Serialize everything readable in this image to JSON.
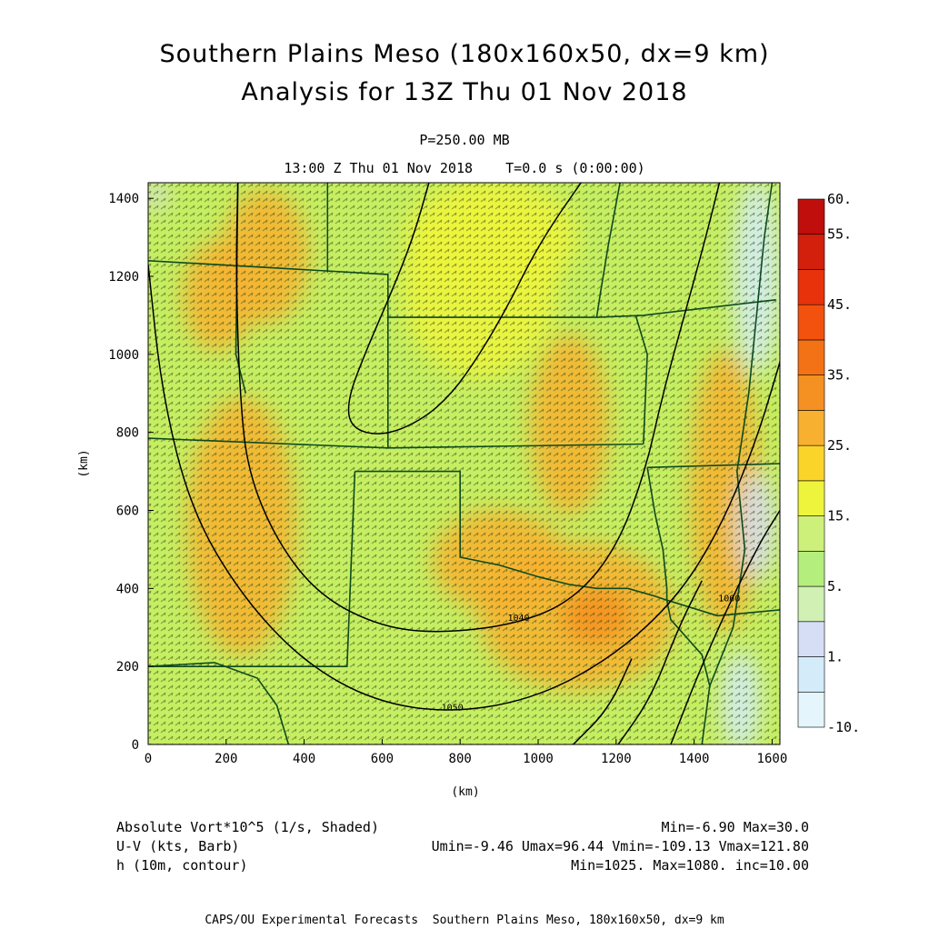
{
  "title": "Southern Plains Meso (180x160x50, dx=9 km)",
  "subtitle": "Analysis for 13Z Thu 01 Nov 2018",
  "level": "P=250.00 MB",
  "time_line": "13:00 Z Thu 01 Nov 2018    T=0.0 s (0:00:00)",
  "fields": [
    {
      "name": "Absolute Vort*10^5 (1/s, Shaded)",
      "stats": "Min=-6.90 Max=30.0"
    },
    {
      "name": "U-V (kts, Barb)",
      "stats": "Umin=-9.46 Umax=96.44 Vmin=-109.13 Vmax=121.80"
    },
    {
      "name": "h (10m, contour)",
      "stats": "Min=1025. Max=1080. inc=10.00"
    }
  ],
  "footer": "CAPS/OU Experimental Forecasts  Southern Plains Meso, 180x160x50, dx=9 km",
  "colors": {
    "field_base": "#c6ee62",
    "field_orange": "#f5b23a",
    "map_lines": "#0e4a1e",
    "contour": "#000000"
  },
  "chart_data": {
    "type": "heatmap",
    "xlabel": "(km)",
    "ylabel": "(km)",
    "xlim": [
      0,
      1620
    ],
    "ylim": [
      0,
      1440
    ],
    "x_ticks": [
      0,
      200,
      400,
      600,
      800,
      1000,
      1200,
      1400,
      1600
    ],
    "y_ticks": [
      0,
      200,
      400,
      600,
      800,
      1000,
      1200,
      1400
    ],
    "colorbar": {
      "levels": [
        -10,
        0,
        1,
        2,
        5,
        10,
        15,
        20,
        25,
        30,
        35,
        40,
        45,
        50,
        55,
        60
      ],
      "labels": [
        {
          "value": 60,
          "text": "60."
        },
        {
          "value": 55,
          "text": "55."
        },
        {
          "value": 45,
          "text": "45."
        },
        {
          "value": 35,
          "text": "35."
        },
        {
          "value": 25,
          "text": "25."
        },
        {
          "value": 15,
          "text": "15."
        },
        {
          "value": 5,
          "text": "5."
        },
        {
          "value": 1,
          "text": "1."
        },
        {
          "value": -10,
          "text": "-10."
        }
      ],
      "colors": [
        "#e4f6fc",
        "#d4ecfa",
        "#d6def6",
        "#d0f0b4",
        "#b4ee7c",
        "#cdf07a",
        "#eef43c",
        "#fbd42a",
        "#f8b030",
        "#f59022",
        "#f47216",
        "#f3520e",
        "#e8320c",
        "#d2200c",
        "#c00e0c"
      ]
    },
    "contours": [
      {
        "label": "1040",
        "points": [
          [
            230,
            1440
          ],
          [
            225,
            1200
          ],
          [
            235,
            900
          ],
          [
            255,
            700
          ],
          [
            330,
            520
          ],
          [
            440,
            380
          ],
          [
            600,
            300
          ],
          [
            760,
            285
          ],
          [
            950,
            310
          ],
          [
            1090,
            370
          ],
          [
            1200,
            500
          ],
          [
            1275,
            700
          ],
          [
            1320,
            900
          ],
          [
            1375,
            1100
          ],
          [
            1430,
            1300
          ],
          [
            1465,
            1440
          ]
        ]
      },
      {
        "label": "1050",
        "points": [
          [
            0,
            1230
          ],
          [
            35,
            900
          ],
          [
            110,
            600
          ],
          [
            240,
            380
          ],
          [
            400,
            210
          ],
          [
            580,
            110
          ],
          [
            780,
            80
          ],
          [
            1000,
            120
          ],
          [
            1200,
            230
          ],
          [
            1360,
            380
          ],
          [
            1470,
            560
          ],
          [
            1560,
            780
          ],
          [
            1620,
            980
          ]
        ]
      },
      {
        "label": "1060",
        "points": [
          [
            1340,
            0
          ],
          [
            1410,
            180
          ],
          [
            1490,
            360
          ],
          [
            1570,
            520
          ],
          [
            1620,
            600
          ]
        ]
      },
      {
        "label": "",
        "points": [
          [
            1205,
            0
          ],
          [
            1290,
            120
          ],
          [
            1360,
            300
          ],
          [
            1420,
            420
          ]
        ]
      },
      {
        "label": "",
        "points": [
          [
            1090,
            0
          ],
          [
            1180,
            90
          ],
          [
            1240,
            220
          ]
        ]
      },
      {
        "label": "",
        "points": [
          [
            720,
            1440
          ],
          [
            680,
            1300
          ],
          [
            620,
            1150
          ],
          [
            555,
            1000
          ],
          [
            510,
            880
          ],
          [
            520,
            810
          ],
          [
            600,
            790
          ],
          [
            700,
            830
          ],
          [
            780,
            900
          ],
          [
            850,
            1000
          ],
          [
            920,
            1120
          ],
          [
            980,
            1240
          ],
          [
            1040,
            1340
          ],
          [
            1110,
            1440
          ]
        ]
      }
    ],
    "vorticity_blobs": [
      {
        "cx": 1100,
        "cy": 330,
        "rx": 250,
        "ry": 190,
        "level": 25
      },
      {
        "cx": 900,
        "cy": 470,
        "rx": 170,
        "ry": 130,
        "level": 25
      },
      {
        "cx": 1080,
        "cy": 820,
        "rx": 100,
        "ry": 230,
        "level": 25
      },
      {
        "cx": 1480,
        "cy": 650,
        "rx": 90,
        "ry": 360,
        "level": 25
      },
      {
        "cx": 240,
        "cy": 560,
        "rx": 140,
        "ry": 330,
        "level": 25
      },
      {
        "cx": 300,
        "cy": 1250,
        "rx": 110,
        "ry": 170,
        "level": 25
      },
      {
        "cx": 180,
        "cy": 1150,
        "rx": 90,
        "ry": 140,
        "level": 25
      },
      {
        "cx": 1150,
        "cy": 330,
        "rx": 90,
        "ry": 70,
        "level": 30
      },
      {
        "cx": 850,
        "cy": 1170,
        "rx": 200,
        "ry": 230,
        "level": 15
      },
      {
        "cx": 880,
        "cy": 1300,
        "rx": 220,
        "ry": 150,
        "level": 15
      },
      {
        "cx": 1560,
        "cy": 1200,
        "rx": 60,
        "ry": 250,
        "level": 0
      },
      {
        "cx": 1520,
        "cy": 110,
        "rx": 50,
        "ry": 130,
        "level": 0
      },
      {
        "cx": 1560,
        "cy": 560,
        "rx": 50,
        "ry": 140,
        "level": 1
      },
      {
        "cx": 20,
        "cy": 1410,
        "rx": 25,
        "ry": 40,
        "level": 1
      }
    ],
    "map_lines": [
      [
        [
          0,
          1240
        ],
        [
          615,
          1205
        ],
        [
          615,
          760
        ]
      ],
      [
        [
          460,
          1440
        ],
        [
          460,
          1210
        ]
      ],
      [
        [
          615,
          1095
        ],
        [
          1150,
          1095
        ]
      ],
      [
        [
          1150,
          1095
        ],
        [
          1160,
          1160
        ],
        [
          1180,
          1280
        ],
        [
          1210,
          1440
        ]
      ],
      [
        [
          1150,
          1095
        ],
        [
          1270,
          1100
        ],
        [
          1610,
          1140
        ]
      ],
      [
        [
          0,
          785
        ],
        [
          615,
          760
        ],
        [
          1270,
          770
        ]
      ],
      [
        [
          1270,
          770
        ],
        [
          1280,
          1000
        ],
        [
          1250,
          1100
        ]
      ],
      [
        [
          1280,
          710
        ],
        [
          1620,
          720
        ]
      ],
      [
        [
          1280,
          710
        ],
        [
          1300,
          590
        ],
        [
          1320,
          500
        ],
        [
          1330,
          400
        ],
        [
          1330,
          370
        ]
      ],
      [
        [
          1330,
          370
        ],
        [
          1340,
          320
        ],
        [
          1420,
          230
        ],
        [
          1440,
          150
        ],
        [
          1420,
          0
        ]
      ],
      [
        [
          1330,
          370
        ],
        [
          1460,
          330
        ],
        [
          1620,
          345
        ]
      ],
      [
        [
          530,
          700
        ],
        [
          800,
          700
        ],
        [
          800,
          480
        ]
      ],
      [
        [
          530,
          700
        ],
        [
          510,
          200
        ],
        [
          0,
          200
        ]
      ],
      [
        [
          800,
          480
        ],
        [
          900,
          460
        ],
        [
          1000,
          430
        ],
        [
          1080,
          410
        ],
        [
          1150,
          400
        ],
        [
          1230,
          400
        ],
        [
          1300,
          380
        ],
        [
          1330,
          370
        ]
      ],
      [
        [
          0,
          200
        ],
        [
          170,
          210
        ],
        [
          280,
          170
        ],
        [
          330,
          100
        ],
        [
          360,
          0
        ]
      ],
      [
        [
          1440,
          150
        ],
        [
          1500,
          300
        ],
        [
          1530,
          500
        ],
        [
          1510,
          700
        ],
        [
          1540,
          900
        ],
        [
          1560,
          1100
        ],
        [
          1580,
          1300
        ],
        [
          1600,
          1440
        ]
      ],
      [
        [
          230,
          1440
        ],
        [
          225,
          1000
        ],
        [
          250,
          900
        ]
      ]
    ]
  }
}
